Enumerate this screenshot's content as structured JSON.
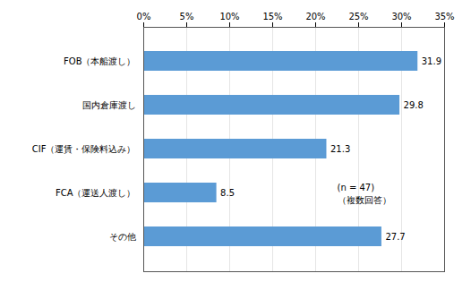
{
  "chart_data": {
    "type": "bar",
    "orientation": "horizontal",
    "categories": [
      "FOB（本船渡し）",
      "国内倉庫渡し",
      "CIF（運賃・保険料込み）",
      "FCA（運送人渡し）",
      "その他"
    ],
    "values": [
      31.9,
      29.8,
      21.3,
      8.5,
      27.7
    ],
    "color": "#5b9bd5",
    "xlim": [
      0,
      35
    ],
    "xticks": [
      {
        "value": 0,
        "label": "0%"
      },
      {
        "value": 5,
        "label": "5%"
      },
      {
        "value": 10,
        "label": "10%"
      },
      {
        "value": 15,
        "label": "15%"
      },
      {
        "value": 20,
        "label": "20%"
      },
      {
        "value": 25,
        "label": "25%"
      },
      {
        "value": 30,
        "label": "30%"
      },
      {
        "value": 35,
        "label": "35%"
      }
    ],
    "grid": true,
    "data_labels": true,
    "annotations": [
      {
        "text": "(n = 47)\n（複数回答）",
        "x": 22.5,
        "y": "FCA（運送人渡し）"
      }
    ]
  }
}
